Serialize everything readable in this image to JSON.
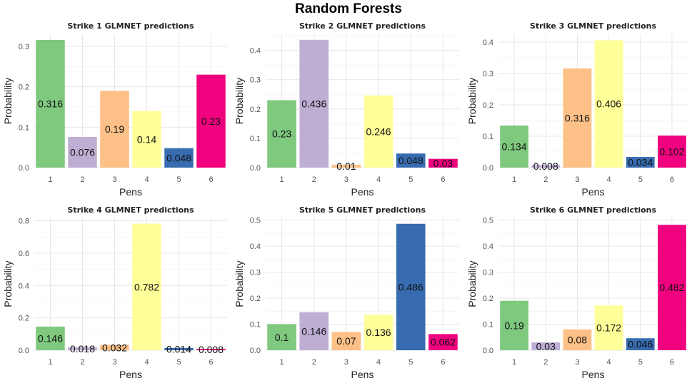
{
  "figure": {
    "title": "Random Forests"
  },
  "colors": [
    "#7fc97f",
    "#beaed4",
    "#fdc086",
    "#ffff99",
    "#386cb0",
    "#f0027f"
  ],
  "chart_data": [
    {
      "type": "bar",
      "title": "Strike 1 GLMNET predictions",
      "xlabel": "Pens",
      "ylabel": "Probability",
      "categories": [
        "1",
        "2",
        "3",
        "4",
        "5",
        "6"
      ],
      "values": [
        0.316,
        0.076,
        0.19,
        0.14,
        0.048,
        0.23
      ],
      "labels": [
        "0.316",
        "0.076",
        "0.19",
        "0.14",
        "0.048",
        "0.23"
      ],
      "ylim": [
        0,
        0.33
      ],
      "yticks": [
        0.0,
        0.1,
        0.2,
        0.3
      ],
      "ytick_labels": [
        "0.0",
        "0.1",
        "0.2",
        "0.3"
      ]
    },
    {
      "type": "bar",
      "title": "Strike 2 GLMNET predictions",
      "xlabel": "Pens",
      "ylabel": "Probability",
      "categories": [
        "1",
        "2",
        "3",
        "4",
        "5",
        "6"
      ],
      "values": [
        0.23,
        0.436,
        0.01,
        0.246,
        0.048,
        0.03
      ],
      "labels": [
        "0.23",
        "0.436",
        "0.01",
        "0.246",
        "0.048",
        "0.03"
      ],
      "ylim": [
        0,
        0.455
      ],
      "yticks": [
        0.0,
        0.1,
        0.2,
        0.3,
        0.4
      ],
      "ytick_labels": [
        "0.0",
        "0.1",
        "0.2",
        "0.3",
        "0.4"
      ]
    },
    {
      "type": "bar",
      "title": "Strike 3 GLMNET predictions",
      "xlabel": "Pens",
      "ylabel": "Probability",
      "categories": [
        "1",
        "2",
        "3",
        "4",
        "5",
        "6"
      ],
      "values": [
        0.134,
        0.008,
        0.316,
        0.406,
        0.034,
        0.102
      ],
      "labels": [
        "0.134",
        "0.008",
        "0.316",
        "0.406",
        "0.034",
        "0.102"
      ],
      "ylim": [
        0,
        0.425
      ],
      "yticks": [
        0.0,
        0.1,
        0.2,
        0.3,
        0.4
      ],
      "ytick_labels": [
        "0.0",
        "0.1",
        "0.2",
        "0.3",
        "0.4"
      ]
    },
    {
      "type": "bar",
      "title": "Strike 4 GLMNET predictions",
      "xlabel": "Pens",
      "ylabel": "Probability",
      "categories": [
        "1",
        "2",
        "3",
        "4",
        "5",
        "6"
      ],
      "values": [
        0.146,
        0.018,
        0.032,
        0.782,
        0.014,
        0.008
      ],
      "labels": [
        "0.146",
        "0.018",
        "0.032",
        "0.782",
        "0.014",
        "0.008"
      ],
      "ylim": [
        0,
        0.82
      ],
      "yticks": [
        0.0,
        0.2,
        0.4,
        0.6,
        0.8
      ],
      "ytick_labels": [
        "0.0",
        "0.2",
        "0.4",
        "0.6",
        "0.8"
      ]
    },
    {
      "type": "bar",
      "title": "Strike 5 GLMNET predictions",
      "xlabel": "Pens",
      "ylabel": "Probability",
      "categories": [
        "1",
        "2",
        "3",
        "4",
        "5",
        "6"
      ],
      "values": [
        0.1,
        0.146,
        0.07,
        0.136,
        0.486,
        0.062
      ],
      "labels": [
        "0.1",
        "0.146",
        "0.07",
        "0.136",
        "0.486",
        "0.062"
      ],
      "ylim": [
        0,
        0.51
      ],
      "yticks": [
        0.0,
        0.1,
        0.2,
        0.3,
        0.4,
        0.5
      ],
      "ytick_labels": [
        "0.0",
        "0.1",
        "0.2",
        "0.3",
        "0.4",
        "0.5"
      ]
    },
    {
      "type": "bar",
      "title": "Strike 6 GLMNET predictions",
      "xlabel": "Pens",
      "ylabel": "Probability",
      "categories": [
        "1",
        "2",
        "3",
        "4",
        "5",
        "6"
      ],
      "values": [
        0.19,
        0.03,
        0.08,
        0.172,
        0.046,
        0.482
      ],
      "labels": [
        "0.19",
        "0.03",
        "0.08",
        "0.172",
        "0.046",
        "0.482"
      ],
      "ylim": [
        0,
        0.51
      ],
      "yticks": [
        0.0,
        0.1,
        0.2,
        0.3,
        0.4,
        0.5
      ],
      "ytick_labels": [
        "0.0",
        "0.1",
        "0.2",
        "0.3",
        "0.4",
        "0.5"
      ]
    }
  ]
}
